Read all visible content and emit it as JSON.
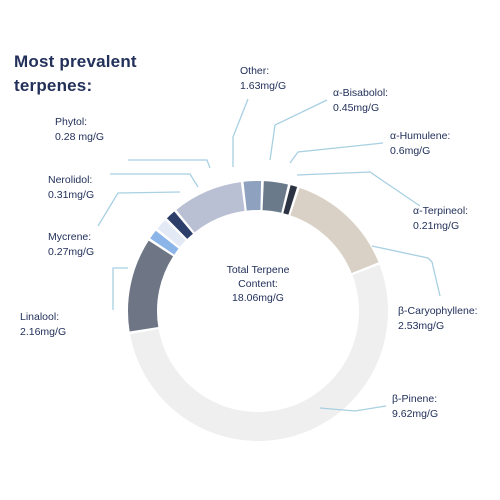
{
  "chart_data": {
    "type": "pie",
    "title_lines": [
      "Most prevalent",
      "terpenes:"
    ],
    "center_text_lines": [
      "Total Terpene",
      "Content:",
      "18.06mg/G"
    ],
    "slices": [
      {
        "name": "α-Bisabolol",
        "value": 0.45,
        "value_label": "0.45mg/G",
        "color": "#8ea2bf"
      },
      {
        "name": "α-Humulene",
        "value": 0.6,
        "value_label": "0.6mg/G",
        "color": "#6b7a8b"
      },
      {
        "name": "α-Terpineol",
        "value": 0.21,
        "value_label": "0.21mg/G",
        "color": "#2c3444"
      },
      {
        "name": "β-Caryophyllene",
        "value": 2.53,
        "value_label": "2.53mg/G",
        "color": "#d9d1c5"
      },
      {
        "name": "β-Pinene",
        "value": 9.62,
        "value_label": "9.62mg/G",
        "color": "#efefef"
      },
      {
        "name": "Linalool",
        "value": 2.16,
        "value_label": "2.16mg/G",
        "color": "#6e7686"
      },
      {
        "name": "Mycrene",
        "value": 0.27,
        "value_label": "0.27mg/G",
        "color": "#8bb4e8"
      },
      {
        "name": "Nerolidol",
        "value": 0.31,
        "value_label": "0.31mg/G",
        "color": "#e4e9f6"
      },
      {
        "name": "Phytol",
        "value": 0.28,
        "value_label": "0.28 mg/G",
        "color": "#2d3e6a"
      },
      {
        "name": "Other",
        "value": 1.63,
        "value_label": "1.63mg/G",
        "color": "#b9c0d4"
      }
    ],
    "label_color": "#22305a",
    "leader_color": "#a8d0e2"
  }
}
